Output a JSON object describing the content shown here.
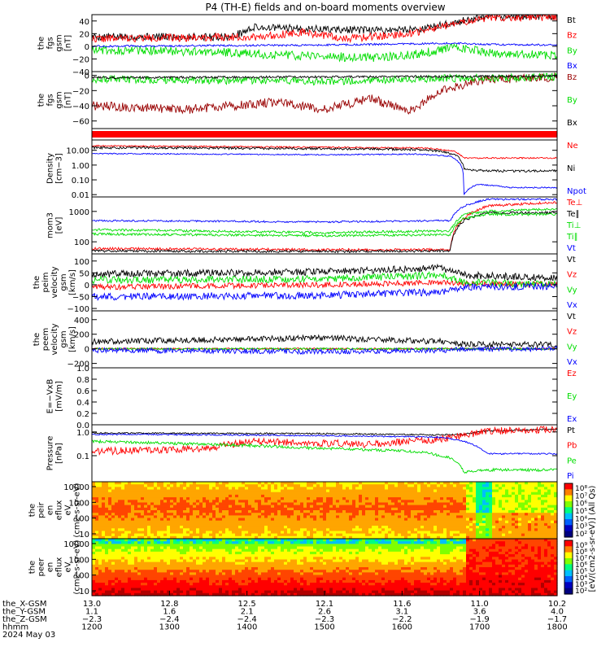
{
  "title": "P4 (TH-E) fields and on-board moments overview",
  "colors": {
    "black": "#000000",
    "red": "#ff0000",
    "green": "#00dd00",
    "blue": "#0000ff",
    "darkred": "#990000"
  },
  "chart_data": [
    {
      "id": "p1",
      "type": "line",
      "ylabel": [
        "the",
        "fgs",
        "gsm",
        "[nT]"
      ],
      "ylim": [
        -40,
        50
      ],
      "yticks": [
        "40",
        "20",
        "0",
        "−20",
        "−40"
      ],
      "ytickvals": [
        40,
        20,
        0,
        -20,
        -40
      ],
      "series": [
        {
          "name": "Bt",
          "color": "#000000",
          "points": [
            [
              0,
              15
            ],
            [
              0.3,
              15
            ],
            [
              0.35,
              30
            ],
            [
              0.6,
              25
            ],
            [
              0.72,
              28
            ],
            [
              0.78,
              38
            ],
            [
              0.85,
              46
            ],
            [
              1,
              48
            ]
          ],
          "noise": 6
        },
        {
          "name": "Bz",
          "color": "#ff0000",
          "points": [
            [
              0,
              12
            ],
            [
              0.35,
              15
            ],
            [
              0.45,
              22
            ],
            [
              0.55,
              12
            ],
            [
              0.68,
              20
            ],
            [
              0.78,
              35
            ],
            [
              0.85,
              45
            ],
            [
              1,
              46
            ]
          ],
          "noise": 6
        },
        {
          "name": "By",
          "color": "#00dd00",
          "points": [
            [
              0,
              -5
            ],
            [
              0.3,
              -10
            ],
            [
              0.45,
              -15
            ],
            [
              0.6,
              -18
            ],
            [
              0.7,
              -12
            ],
            [
              0.78,
              -2
            ],
            [
              0.85,
              -10
            ],
            [
              1,
              -15
            ]
          ],
          "noise": 7
        },
        {
          "name": "Bx",
          "color": "#0000ff",
          "points": [
            [
              0,
              0
            ],
            [
              0.5,
              2
            ],
            [
              0.78,
              5
            ],
            [
              0.85,
              3
            ],
            [
              1,
              2
            ]
          ],
          "noise": 1.5
        }
      ]
    },
    {
      "id": "p2",
      "type": "line",
      "ylabel": [
        "the",
        "fgs",
        "gsm",
        "[nT]"
      ],
      "ylim": [
        -70,
        5
      ],
      "yticks": [
        "0",
        "−20",
        "−40",
        "−60"
      ],
      "ytickvals": [
        0,
        -20,
        -40,
        -60
      ],
      "series": [
        {
          "name": "Bz",
          "color": "#990000",
          "points": [
            [
              0,
              -40
            ],
            [
              0.2,
              -45
            ],
            [
              0.4,
              -35
            ],
            [
              0.5,
              -45
            ],
            [
              0.6,
              -30
            ],
            [
              0.68,
              -48
            ],
            [
              0.75,
              -20
            ],
            [
              0.85,
              -5
            ],
            [
              1,
              -3
            ]
          ],
          "noise": 6
        },
        {
          "name": "By",
          "color": "#00dd00",
          "points": [
            [
              0,
              -5
            ],
            [
              0.5,
              -8
            ],
            [
              0.75,
              -4
            ],
            [
              1,
              -2
            ]
          ],
          "noise": 5
        },
        {
          "name": "Bx",
          "color": "#000000",
          "points": [
            [
              0,
              -3
            ],
            [
              0.5,
              -2
            ],
            [
              1,
              -1
            ]
          ],
          "noise": 1.5
        }
      ]
    },
    {
      "id": "p3",
      "type": "band",
      "color": "#ff0000"
    },
    {
      "id": "p4",
      "type": "line",
      "log": true,
      "ylabel": [
        "Density",
        "[cm−3]"
      ],
      "ylim": [
        0.007,
        50
      ],
      "yticks": [
        "10.00",
        "1.00",
        "0.10",
        "0.01"
      ],
      "ytickvals": [
        10,
        1,
        0.1,
        0.01
      ],
      "series": [
        {
          "name": "Ne",
          "color": "#ff0000",
          "points": [
            [
              0,
              20
            ],
            [
              0.5,
              16
            ],
            [
              0.72,
              14
            ],
            [
              0.78,
              8
            ],
            [
              0.8,
              3
            ],
            [
              1,
              3
            ]
          ],
          "noise": 0.05
        },
        {
          "name": "Ni",
          "color": "#000000",
          "points": [
            [
              0,
              15
            ],
            [
              0.5,
              13
            ],
            [
              0.72,
              11
            ],
            [
              0.78,
              5
            ],
            [
              0.8,
              0.5
            ],
            [
              0.85,
              0.4
            ],
            [
              1,
              0.4
            ]
          ],
          "noise": 0.08
        },
        {
          "name": "Npot",
          "color": "#0000ff",
          "points": [
            [
              0,
              6
            ],
            [
              0.5,
              5
            ],
            [
              0.7,
              5.5
            ],
            [
              0.77,
              4
            ],
            [
              0.8,
              0.01
            ],
            [
              0.83,
              0.05
            ],
            [
              0.9,
              0.03
            ],
            [
              1,
              0.03
            ]
          ],
          "noise": 0.04
        }
      ]
    },
    {
      "id": "p5",
      "type": "line",
      "log": true,
      "ylabel": [
        "mom3",
        "[eV]"
      ],
      "ylim": [
        40,
        3000
      ],
      "yticks": [
        "1000",
        "100"
      ],
      "ytickvals": [
        1000,
        100
      ],
      "series": [
        {
          "name": "Te⊥",
          "color": "#ff0000",
          "points": [
            [
              0,
              60
            ],
            [
              0.5,
              55
            ],
            [
              0.77,
              55
            ],
            [
              0.8,
              600
            ],
            [
              0.85,
              1500
            ],
            [
              1,
              2000
            ]
          ],
          "noise": 0.04
        },
        {
          "name": "Te∥",
          "color": "#000000",
          "points": [
            [
              0,
              50
            ],
            [
              0.5,
              48
            ],
            [
              0.77,
              50
            ],
            [
              0.8,
              500
            ],
            [
              0.85,
              900
            ],
            [
              1,
              900
            ]
          ],
          "noise": 0.04
        },
        {
          "name": "Ti⊥",
          "color": "#00dd00",
          "points": [
            [
              0,
              250
            ],
            [
              0.5,
              200
            ],
            [
              0.77,
              230
            ],
            [
              0.8,
              800
            ],
            [
              0.85,
              1000
            ],
            [
              1,
              1200
            ]
          ],
          "noise": 0.04
        },
        {
          "name": "Ti∥",
          "color": "#00dd00",
          "points": [
            [
              0,
              180
            ],
            [
              0.5,
              160
            ],
            [
              0.77,
              170
            ],
            [
              0.8,
              600
            ],
            [
              0.85,
              800
            ],
            [
              1,
              800
            ]
          ],
          "noise": 0.04
        },
        {
          "name": "Vt",
          "color": "#0000ff",
          "points": [
            [
              0,
              500
            ],
            [
              0.5,
              450
            ],
            [
              0.77,
              500
            ],
            [
              0.8,
              1500
            ],
            [
              0.85,
              2500
            ],
            [
              1,
              2500
            ]
          ],
          "noise": 0.03
        }
      ]
    },
    {
      "id": "p6",
      "type": "line",
      "ylabel": [
        "the",
        "peim",
        "velocity",
        "gsm",
        "[km/s]"
      ],
      "ylim": [
        -110,
        130
      ],
      "yticks": [
        "100",
        "50",
        "0",
        "−50",
        "−100"
      ],
      "ytickvals": [
        100,
        50,
        0,
        -50,
        -100
      ],
      "series": [
        {
          "name": "Vt",
          "color": "#000000",
          "points": [
            [
              0,
              45
            ],
            [
              0.5,
              55
            ],
            [
              0.75,
              70
            ],
            [
              0.8,
              40
            ],
            [
              1,
              30
            ]
          ],
          "noise": 15
        },
        {
          "name": "Vz",
          "color": "#ff0000",
          "points": [
            [
              0,
              -10
            ],
            [
              0.5,
              0
            ],
            [
              0.75,
              10
            ],
            [
              0.8,
              5
            ],
            [
              1,
              0
            ]
          ],
          "noise": 12
        },
        {
          "name": "Vy",
          "color": "#00dd00",
          "points": [
            [
              0,
              20
            ],
            [
              0.5,
              25
            ],
            [
              0.75,
              40
            ],
            [
              0.8,
              10
            ],
            [
              1,
              0
            ]
          ],
          "noise": 15
        },
        {
          "name": "Vx",
          "color": "#0000ff",
          "points": [
            [
              0,
              -50
            ],
            [
              0.5,
              -45
            ],
            [
              0.75,
              -30
            ],
            [
              0.8,
              -10
            ],
            [
              1,
              -5
            ]
          ],
          "noise": 15
        }
      ]
    },
    {
      "id": "p7",
      "type": "line",
      "ylabel": [
        "the",
        "peem",
        "velocity",
        "gsm",
        "[km/s]"
      ],
      "ylim": [
        -260,
        520
      ],
      "yticks": [
        "400",
        "200",
        "0",
        "−200"
      ],
      "ytickvals": [
        400,
        200,
        0,
        -200
      ],
      "series": [
        {
          "name": "Vt",
          "color": "#000000",
          "points": [
            [
              0,
              100
            ],
            [
              0.5,
              150
            ],
            [
              0.75,
              100
            ],
            [
              0.8,
              60
            ],
            [
              1,
              60
            ]
          ],
          "noise": 40
        },
        {
          "name": "Vz",
          "color": "#ff0000",
          "points": [
            [
              0,
              0
            ],
            [
              0.5,
              0
            ],
            [
              1,
              0
            ]
          ],
          "noise": 12
        },
        {
          "name": "Vy",
          "color": "#00dd00",
          "points": [
            [
              0,
              0
            ],
            [
              0.5,
              0
            ],
            [
              1,
              0
            ]
          ],
          "noise": 14
        },
        {
          "name": "Vx",
          "color": "#0000ff",
          "points": [
            [
              0,
              -20
            ],
            [
              0.5,
              -40
            ],
            [
              0.75,
              -20
            ],
            [
              0.8,
              -10
            ],
            [
              1,
              0
            ]
          ],
          "noise": 35
        }
      ]
    },
    {
      "id": "p8",
      "type": "line",
      "ylabel": [
        "E=−VxB",
        "[mV/m]"
      ],
      "ylim": [
        0,
        1
      ],
      "yticks": [
        "1.0",
        "0.8",
        "0.6",
        "0.4",
        "0.2",
        "0.0"
      ],
      "ytickvals": [
        1,
        0.8,
        0.6,
        0.4,
        0.2,
        0
      ],
      "series": [
        {
          "name": "Ez",
          "color": "#ff0000",
          "points": []
        },
        {
          "name": "Ey",
          "color": "#00dd00",
          "points": []
        },
        {
          "name": "Ex",
          "color": "#0000ff",
          "points": []
        }
      ]
    },
    {
      "id": "p9",
      "type": "line",
      "log": true,
      "ylabel": [
        "Pressure",
        "[nPa]"
      ],
      "ylim": [
        0.008,
        2
      ],
      "yticks": [
        "1.0",
        "0.1"
      ],
      "ytickvals": [
        1,
        0.1
      ],
      "series": [
        {
          "name": "Pt",
          "color": "#000000",
          "points": [
            [
              0,
              0.9
            ],
            [
              0.5,
              0.85
            ],
            [
              0.75,
              0.75
            ],
            [
              0.8,
              0.8
            ],
            [
              0.85,
              1.1
            ],
            [
              1,
              1.3
            ]
          ],
          "noise": 0.03
        },
        {
          "name": "Pb",
          "color": "#ff0000",
          "points": [
            [
              0,
              0.15
            ],
            [
              0.25,
              0.2
            ],
            [
              0.35,
              0.4
            ],
            [
              0.6,
              0.3
            ],
            [
              0.75,
              0.5
            ],
            [
              0.8,
              0.7
            ],
            [
              0.85,
              1.1
            ],
            [
              1,
              1.3
            ]
          ],
          "noise": 0.15
        },
        {
          "name": "Pe",
          "color": "#00dd00",
          "points": [
            [
              0,
              0.4
            ],
            [
              0.5,
              0.2
            ],
            [
              0.7,
              0.15
            ],
            [
              0.77,
              0.08
            ],
            [
              0.8,
              0.02
            ],
            [
              0.85,
              0.025
            ],
            [
              1,
              0.025
            ]
          ],
          "noise": 0.06
        },
        {
          "name": "Pi",
          "color": "#0000ff",
          "points": [
            [
              0,
              0.8
            ],
            [
              0.5,
              0.7
            ],
            [
              0.75,
              0.6
            ],
            [
              0.8,
              0.4
            ],
            [
              0.85,
              0.12
            ],
            [
              1,
              0.12
            ]
          ],
          "noise": 0.03
        }
      ]
    },
    {
      "id": "p10",
      "type": "spectrogram",
      "ylabel": [
        "the",
        "peir",
        "en",
        "eflux",
        "eV",
        "(cm2-s-sr-eV)"
      ],
      "yticks": [
        "10000",
        "1000",
        "100",
        "10"
      ],
      "colorbar": [
        "10⁸",
        "10⁷",
        "10⁶",
        "10⁵",
        "10⁴",
        "10³",
        "10²"
      ]
    },
    {
      "id": "p11",
      "type": "spectrogram",
      "ylabel": [
        "the",
        "peer",
        "en",
        "eflux",
        "eV",
        "(cm2-s-sr-eV)"
      ],
      "yticks": [
        "10000",
        "1000",
        "100",
        "10"
      ],
      "colorbar": [
        "10⁹",
        "10⁸",
        "10⁷",
        "10⁶",
        "10⁵",
        "10⁴",
        "10³",
        "10²"
      ]
    }
  ],
  "colorbar_label": "[eV/(cm2-s-sr-eV)] (All Qs)",
  "xaxis": {
    "rows": [
      {
        "label": "the_X-GSM",
        "values": [
          "13.0",
          "12.8",
          "12.5",
          "12.1",
          "11.6",
          "11.0",
          "10.2"
        ]
      },
      {
        "label": "the_Y-GSM",
        "values": [
          "1.1",
          "1.6",
          "2.1",
          "2.6",
          "3.1",
          "3.6",
          "4.0"
        ]
      },
      {
        "label": "the_Z-GSM",
        "values": [
          "−2.3",
          "−2.4",
          "−2.4",
          "−2.3",
          "−2.2",
          "−1.9",
          "−1.7"
        ]
      },
      {
        "label": "hhmm",
        "values": [
          "1200",
          "1300",
          "1400",
          "1500",
          "1600",
          "1700",
          "1800"
        ]
      }
    ],
    "date": "2024 May 03"
  }
}
